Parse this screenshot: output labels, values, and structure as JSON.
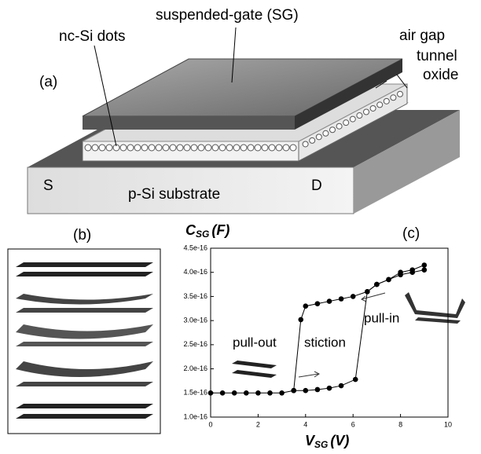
{
  "diagram": {
    "panel_a": "(a)",
    "gate_label": "suspended-gate (SG)",
    "dots_label": "nc-Si dots",
    "air_gap_label": "air gap",
    "oxide_label": [
      "tunnel",
      "oxide"
    ],
    "source": "S",
    "drain": "D",
    "substrate": "p-Si substrate",
    "panel_b": "(b)"
  },
  "chart_data": {
    "type": "line",
    "panel": "(c)",
    "y_label": {
      "main": "C",
      "sub": "SG",
      "unit": "(F)"
    },
    "x_label": {
      "main": "V",
      "sub": "SG",
      "unit": "(V)"
    },
    "annotations": {
      "pull_out": "pull-out",
      "stiction": "stiction",
      "pull_in": "pull-in"
    },
    "color": "#000000",
    "xlim": [
      0,
      10
    ],
    "xticks": [
      0,
      2,
      4,
      6,
      8,
      10
    ],
    "ylim": [
      1e-16,
      4.5e-16
    ],
    "yticks": [
      {
        "value": 1e-16,
        "label": "1.0e-16"
      },
      {
        "value": 1.5e-16,
        "label": "1.5e-16"
      },
      {
        "value": 2e-16,
        "label": "2.0e-16"
      },
      {
        "value": 2.5e-16,
        "label": "2.5e-16"
      },
      {
        "value": 3e-16,
        "label": "3.0e-16"
      },
      {
        "value": 3.5e-16,
        "label": "3.5e-16"
      },
      {
        "value": 4e-16,
        "label": "4.0e-16"
      },
      {
        "value": 4.5e-16,
        "label": "4.5e-16"
      }
    ],
    "series": [
      {
        "x": [
          0,
          0.5,
          1,
          1.5,
          2,
          2.5,
          3,
          3.5,
          4,
          4.5,
          5,
          5.5,
          6.1,
          6.6,
          7,
          7.5,
          8,
          8.5,
          9
        ],
        "values": [
          1.5e-16,
          1.5e-16,
          1.5e-16,
          1.5e-16,
          1.5e-16,
          1.5e-16,
          1.5e-16,
          1.55e-16,
          1.55e-16,
          1.57e-16,
          1.6e-16,
          1.65e-16,
          1.78e-16,
          3.6e-16,
          3.75e-16,
          3.85e-16,
          4e-16,
          4.05e-16,
          4.15e-16
        ]
      },
      {
        "x": [
          9,
          8.5,
          8,
          7.5,
          7,
          6.6,
          6,
          5.5,
          5,
          4.5,
          4,
          3.8,
          3.5
        ],
        "values": [
          4.05e-16,
          4e-16,
          3.95e-16,
          3.85e-16,
          3.75e-16,
          3.6e-16,
          3.5e-16,
          3.45e-16,
          3.4e-16,
          3.35e-16,
          3.3e-16,
          3.02e-16,
          1.55e-16
        ]
      }
    ]
  }
}
